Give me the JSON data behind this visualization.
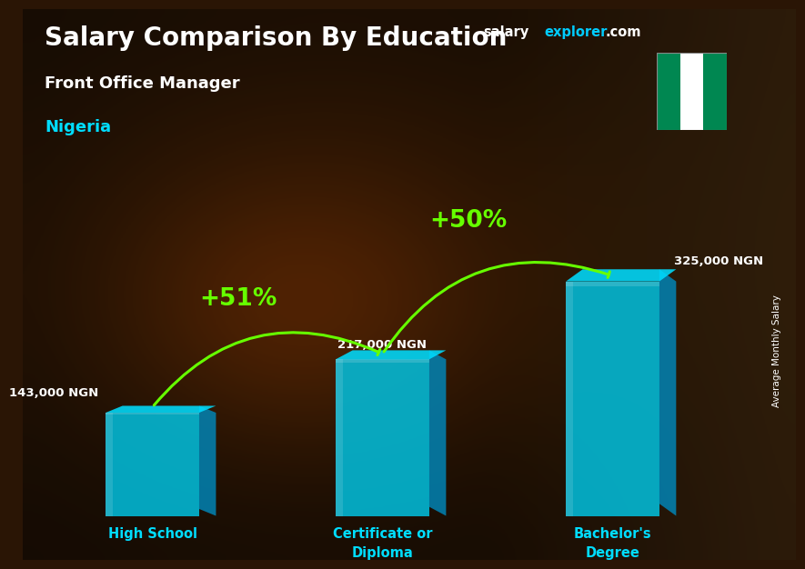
{
  "title": "Salary Comparison By Education",
  "subtitle": "Front Office Manager",
  "country": "Nigeria",
  "categories": [
    "High School",
    "Certificate or\nDiploma",
    "Bachelor's\nDegree"
  ],
  "values": [
    143000,
    217000,
    325000
  ],
  "value_labels": [
    "143,000 NGN",
    "217,000 NGN",
    "325,000 NGN"
  ],
  "pct_labels": [
    "+51%",
    "+50%"
  ],
  "bar_color_front": "#00c8e8",
  "bar_color_side": "#0088bb",
  "bar_color_top": "#00ddff",
  "bar_alpha": 0.82,
  "title_color": "#ffffff",
  "subtitle_color": "#ffffff",
  "country_color": "#00ddff",
  "category_color": "#00ddff",
  "value_label_color": "#ffffff",
  "pct_color": "#66ff00",
  "arrow_color": "#66ff00",
  "ylabel_text": "Average Monthly Salary",
  "bar_width": 0.13,
  "ylim": [
    0,
    420000
  ],
  "x_positions": [
    0.18,
    0.5,
    0.82
  ],
  "fig_width": 8.5,
  "fig_height": 6.06
}
